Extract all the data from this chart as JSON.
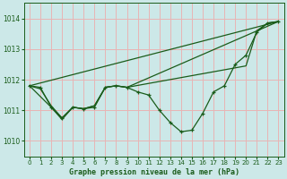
{
  "bg_color": "#cce8e8",
  "grid_color_major": "#e8b4b4",
  "grid_color_minor": "#dce8e8",
  "line_color": "#1a5c1a",
  "title": "Graphe pression niveau de la mer (hPa)",
  "xlim": [
    -0.5,
    23.5
  ],
  "ylim": [
    1009.5,
    1014.5
  ],
  "yticks": [
    1010,
    1011,
    1012,
    1013,
    1014
  ],
  "xticks": [
    0,
    1,
    2,
    3,
    4,
    5,
    6,
    7,
    8,
    9,
    10,
    11,
    12,
    13,
    14,
    15,
    16,
    17,
    18,
    19,
    20,
    21,
    22,
    23
  ],
  "series": [
    {
      "x": [
        0,
        1,
        2,
        3,
        4,
        5,
        6,
        7,
        8,
        9,
        10,
        11,
        12,
        13,
        14,
        15,
        16,
        17,
        18,
        19,
        20,
        21,
        22,
        23
      ],
      "y": [
        1011.8,
        1011.75,
        1011.1,
        1010.75,
        1011.1,
        1011.05,
        1011.1,
        1011.75,
        1011.8,
        1011.75,
        1011.6,
        1011.5,
        1011.0,
        1010.6,
        1010.3,
        1010.35,
        1010.9,
        1011.6,
        1011.8,
        1012.5,
        1012.8,
        1013.55,
        1013.85,
        1013.9
      ],
      "marker": true
    },
    {
      "x": [
        0,
        23
      ],
      "y": [
        1011.8,
        1013.9
      ],
      "marker": false
    },
    {
      "x": [
        0,
        1,
        2,
        3,
        4,
        5,
        6,
        7,
        8,
        9,
        23
      ],
      "y": [
        1011.8,
        1011.7,
        1011.15,
        1010.75,
        1011.1,
        1011.05,
        1011.15,
        1011.75,
        1011.8,
        1011.75,
        1013.9
      ],
      "marker": false
    },
    {
      "comment": "line from (0,1011.8) going to (2, 1011.1), (3, 1010.7), (4, 1011.1), up through (9, 1011.75), then to (20, 1012.45), (21,1013.6), (22,1013.85), (23,1013.9)",
      "x": [
        0,
        2,
        3,
        4,
        5,
        6,
        7,
        8,
        9,
        20,
        21,
        22,
        23
      ],
      "y": [
        1011.8,
        1011.1,
        1010.7,
        1011.1,
        1011.05,
        1011.15,
        1011.75,
        1011.8,
        1011.75,
        1012.45,
        1013.6,
        1013.85,
        1013.9
      ],
      "marker": false
    }
  ]
}
